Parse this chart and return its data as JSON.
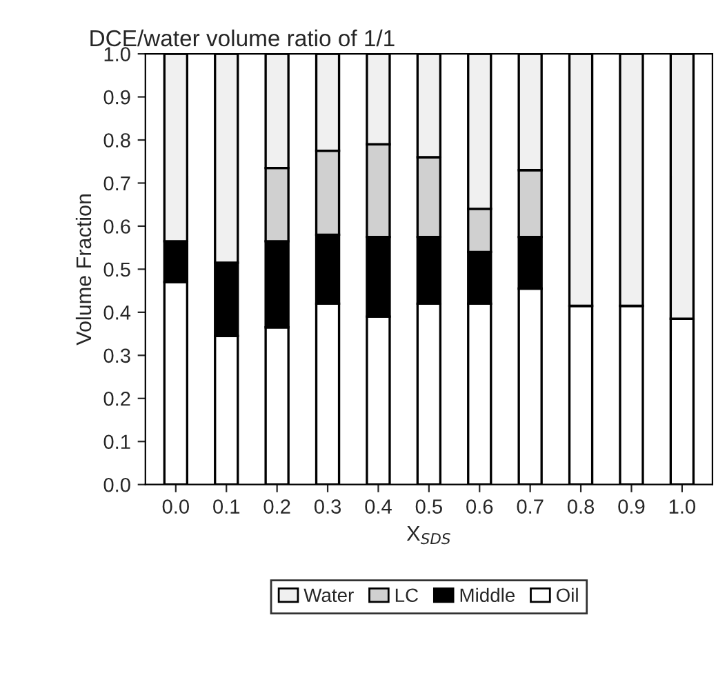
{
  "chart_data": {
    "type": "bar",
    "title": "DCE/water volume ratio of 1/1",
    "xlabel": "X$_{SDS}$",
    "ylabel": "Volume Fraction",
    "categories": [
      "0.0",
      "0.1",
      "0.2",
      "0.3",
      "0.4",
      "0.5",
      "0.6",
      "0.7",
      "0.8",
      "0.9",
      "1.0"
    ],
    "stacked": true,
    "series": [
      {
        "name": "Oil",
        "color": "#ffffff",
        "values": [
          0.47,
          0.345,
          0.365,
          0.42,
          0.39,
          0.42,
          0.42,
          0.455,
          0.415,
          0.415,
          0.385
        ]
      },
      {
        "name": "Middle",
        "color": "#000000",
        "values": [
          0.095,
          0.17,
          0.2,
          0.16,
          0.185,
          0.155,
          0.12,
          0.12,
          0,
          0,
          0
        ]
      },
      {
        "name": "LC",
        "color": "#d0d0d0",
        "values": [
          0,
          0,
          0.17,
          0.195,
          0.215,
          0.185,
          0.1,
          0.155,
          0,
          0,
          0
        ]
      },
      {
        "name": "Water",
        "color": "#f0f0f0",
        "values": [
          0.435,
          0.485,
          0.265,
          0.225,
          0.21,
          0.24,
          0.36,
          0.27,
          0.585,
          0.585,
          0.615
        ]
      }
    ],
    "ylim": [
      0,
      1.0
    ],
    "yticks": [
      {
        "value": 0,
        "label": "0.0"
      },
      0.1,
      0.2,
      0.3,
      0.4,
      0.5,
      0.6,
      0.7,
      0.8,
      0.9,
      {
        "value": 1.0,
        "label": "1.0"
      }
    ],
    "grid": false,
    "legend": "bottom"
  }
}
